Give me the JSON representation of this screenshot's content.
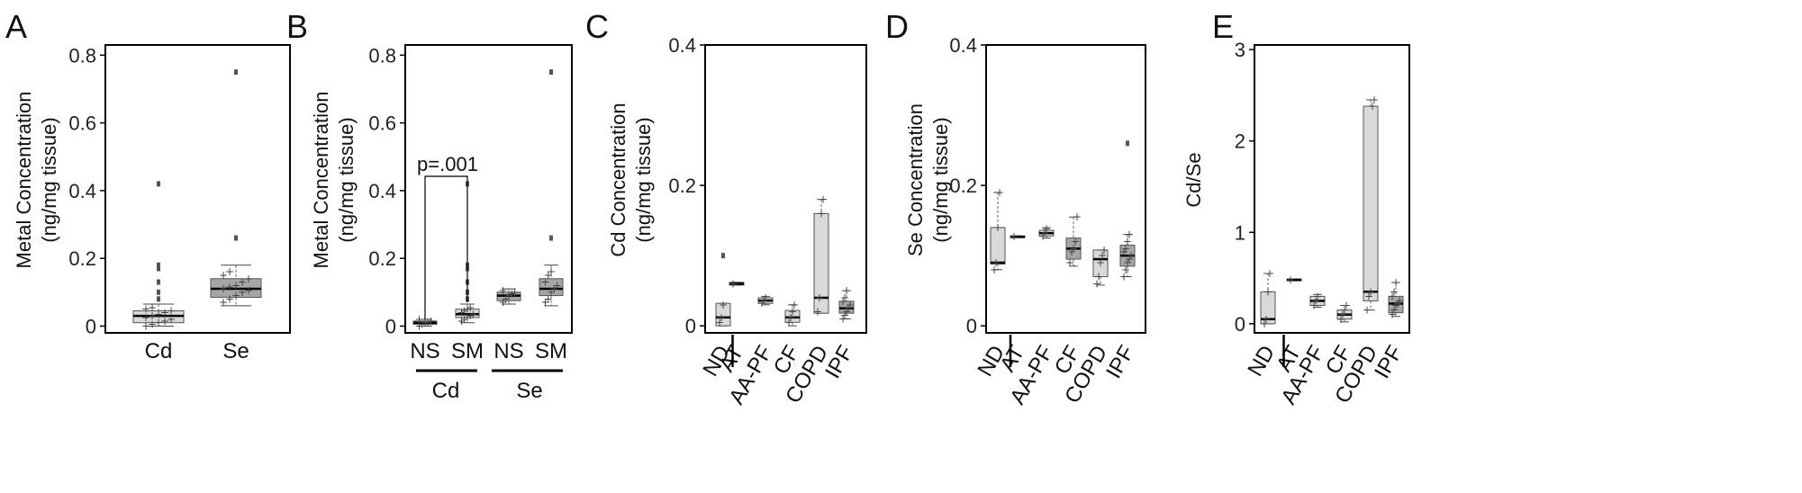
{
  "chart_data": [
    {
      "panel": "A",
      "type": "box",
      "ylabel": [
        "Metal Concentration",
        "(ng/mg tissue)"
      ],
      "ylim": [
        -0.02,
        0.83
      ],
      "yticks": [
        0,
        0.2,
        0.4,
        0.6,
        0.8
      ],
      "ytick_labels": [
        "0",
        "0.2",
        "0.4",
        "0.6",
        "0.8"
      ],
      "categories": [
        "Cd",
        "Se"
      ],
      "boxes": [
        {
          "label": "Cd",
          "q1": 0.01,
          "median": 0.03,
          "q3": 0.045,
          "whisker_low": 0.0,
          "whisker_high": 0.065,
          "fill": "#d9d9d9",
          "outliers": [
            0.42,
            0.18,
            0.17,
            0.13,
            0.1,
            0.08
          ],
          "points": [
            0.0,
            0.005,
            0.01,
            0.015,
            0.02,
            0.025,
            0.03,
            0.035,
            0.04,
            0.045,
            0.05,
            0.055
          ]
        },
        {
          "label": "Se",
          "q1": 0.085,
          "median": 0.11,
          "q3": 0.14,
          "whisker_low": 0.06,
          "whisker_high": 0.18,
          "fill": "#a6a6a6",
          "outliers": [
            0.75,
            0.26
          ],
          "points": [
            0.07,
            0.08,
            0.09,
            0.1,
            0.105,
            0.11,
            0.115,
            0.12,
            0.13,
            0.14,
            0.15,
            0.16
          ]
        }
      ]
    },
    {
      "panel": "B",
      "type": "box",
      "ylabel": [
        "Metal Concentration",
        "(ng/mg tissue)"
      ],
      "ylim": [
        -0.02,
        0.83
      ],
      "yticks": [
        0,
        0.2,
        0.4,
        0.6,
        0.8
      ],
      "ytick_labels": [
        "0",
        "0.2",
        "0.4",
        "0.6",
        "0.8"
      ],
      "categories": [
        "NS",
        "SM",
        "NS",
        "SM"
      ],
      "groups": [
        "Cd",
        "Se"
      ],
      "annotation": "p=.001",
      "boxes": [
        {
          "label": "NS",
          "q1": 0.005,
          "median": 0.01,
          "q3": 0.015,
          "whisker_low": 0.0,
          "whisker_high": 0.02,
          "fill": "#d9d9d9",
          "outliers": [],
          "points": [
            0.0,
            0.005,
            0.01,
            0.012,
            0.015,
            0.02
          ]
        },
        {
          "label": "SM",
          "q1": 0.025,
          "median": 0.035,
          "q3": 0.05,
          "whisker_low": 0.01,
          "whisker_high": 0.065,
          "fill": "#d9d9d9",
          "outliers": [
            0.42,
            0.18,
            0.17,
            0.13,
            0.1,
            0.08
          ],
          "points": [
            0.015,
            0.02,
            0.025,
            0.03,
            0.035,
            0.04,
            0.045,
            0.05,
            0.055
          ]
        },
        {
          "label": "NS",
          "q1": 0.075,
          "median": 0.09,
          "q3": 0.1,
          "whisker_low": 0.065,
          "whisker_high": 0.11,
          "fill": "#a6a6a6",
          "outliers": [],
          "points": [
            0.07,
            0.08,
            0.09,
            0.095,
            0.1,
            0.105
          ]
        },
        {
          "label": "SM",
          "q1": 0.09,
          "median": 0.11,
          "q3": 0.14,
          "whisker_low": 0.06,
          "whisker_high": 0.18,
          "fill": "#a6a6a6",
          "outliers": [
            0.75,
            0.26
          ],
          "points": [
            0.07,
            0.08,
            0.1,
            0.11,
            0.12,
            0.13,
            0.15,
            0.16
          ]
        }
      ]
    },
    {
      "panel": "C",
      "type": "box",
      "ylabel": [
        "Cd Concentration",
        "(ng/mg tissue)"
      ],
      "ylim": [
        -0.01,
        0.4
      ],
      "yticks": [
        0,
        0.2,
        0.4
      ],
      "ytick_labels": [
        "0",
        "0.2",
        "0.4"
      ],
      "categories": [
        "ND",
        "AT",
        "AA-PF",
        "CF",
        "COPD",
        "IPF"
      ],
      "boxes": [
        {
          "label": "ND",
          "q1": 0.0,
          "median": 0.012,
          "q3": 0.032,
          "whisker_low": 0.0,
          "whisker_high": 0.032,
          "fill": "#d9d9d9",
          "outliers": [
            0.1
          ],
          "points": [
            0.005,
            0.012,
            0.03
          ]
        },
        {
          "label": "AT",
          "q1": 0.058,
          "median": 0.06,
          "q3": 0.062,
          "whisker_low": 0.058,
          "whisker_high": 0.062,
          "fill": "#d9d9d9",
          "outliers": [],
          "points": [
            0.06
          ]
        },
        {
          "label": "AA-PF",
          "q1": 0.032,
          "median": 0.036,
          "q3": 0.04,
          "whisker_low": 0.03,
          "whisker_high": 0.042,
          "fill": "#d9d9d9",
          "outliers": [],
          "points": [
            0.032,
            0.036,
            0.04
          ]
        },
        {
          "label": "CF",
          "q1": 0.005,
          "median": 0.012,
          "q3": 0.022,
          "whisker_low": 0.0,
          "whisker_high": 0.03,
          "fill": "#d9d9d9",
          "outliers": [],
          "points": [
            0.005,
            0.012,
            0.02,
            0.03
          ]
        },
        {
          "label": "COPD",
          "q1": 0.018,
          "median": 0.04,
          "q3": 0.16,
          "whisker_low": 0.018,
          "whisker_high": 0.18,
          "fill": "#d9d9d9",
          "outliers": [],
          "points": [
            0.02,
            0.04,
            0.16,
            0.18
          ]
        },
        {
          "label": "IPF",
          "q1": 0.018,
          "median": 0.025,
          "q3": 0.035,
          "whisker_low": 0.01,
          "whisker_high": 0.05,
          "fill": "#a6a6a6",
          "outliers": [],
          "points": [
            0.01,
            0.015,
            0.02,
            0.025,
            0.03,
            0.035,
            0.04,
            0.05
          ]
        }
      ]
    },
    {
      "panel": "D",
      "type": "box",
      "ylabel": [
        "Se Concentration",
        "(ng/mg tissue)"
      ],
      "ylim": [
        -0.01,
        0.4
      ],
      "yticks": [
        0,
        0.2,
        0.4
      ],
      "ytick_labels": [
        "0",
        "0.2",
        "0.4"
      ],
      "categories": [
        "ND",
        "AT",
        "AA-PF",
        "CF",
        "COPD",
        "IPF"
      ],
      "boxes": [
        {
          "label": "ND",
          "q1": 0.088,
          "median": 0.09,
          "q3": 0.14,
          "whisker_low": 0.08,
          "whisker_high": 0.19,
          "fill": "#d9d9d9",
          "outliers": [],
          "points": [
            0.08,
            0.09,
            0.14,
            0.19
          ]
        },
        {
          "label": "AT",
          "q1": 0.126,
          "median": 0.127,
          "q3": 0.128,
          "whisker_low": 0.126,
          "whisker_high": 0.128,
          "fill": "#d9d9d9",
          "outliers": [],
          "points": [
            0.127
          ]
        },
        {
          "label": "AA-PF",
          "q1": 0.128,
          "median": 0.132,
          "q3": 0.136,
          "whisker_low": 0.125,
          "whisker_high": 0.14,
          "fill": "#d9d9d9",
          "outliers": [],
          "points": [
            0.128,
            0.132,
            0.138
          ]
        },
        {
          "label": "CF",
          "q1": 0.095,
          "median": 0.11,
          "q3": 0.125,
          "whisker_low": 0.085,
          "whisker_high": 0.155,
          "fill": "#a6a6a6",
          "outliers": [],
          "points": [
            0.09,
            0.105,
            0.11,
            0.12,
            0.155
          ]
        },
        {
          "label": "COPD",
          "q1": 0.07,
          "median": 0.095,
          "q3": 0.108,
          "whisker_low": 0.058,
          "whisker_high": 0.108,
          "fill": "#d9d9d9",
          "outliers": [],
          "points": [
            0.06,
            0.07,
            0.09,
            0.1,
            0.108
          ]
        },
        {
          "label": "IPF",
          "q1": 0.085,
          "median": 0.1,
          "q3": 0.115,
          "whisker_low": 0.07,
          "whisker_high": 0.13,
          "fill": "#a6a6a6",
          "outliers": [
            0.26
          ],
          "points": [
            0.07,
            0.08,
            0.09,
            0.095,
            0.1,
            0.105,
            0.11,
            0.12,
            0.13
          ]
        }
      ]
    },
    {
      "panel": "E",
      "type": "box",
      "ylabel": [
        "Cd/Se"
      ],
      "ylim": [
        -0.1,
        3.05
      ],
      "yticks": [
        0,
        1,
        2,
        3
      ],
      "ytick_labels": [
        "0",
        "1",
        "2",
        "3"
      ],
      "categories": [
        "ND",
        "AT",
        "AA-PF",
        "CF",
        "COPD",
        "IPF"
      ],
      "boxes": [
        {
          "label": "ND",
          "q1": 0.0,
          "median": 0.05,
          "q3": 0.35,
          "whisker_low": 0.0,
          "whisker_high": 0.55,
          "fill": "#d9d9d9",
          "outliers": [],
          "points": [
            0.0,
            0.05,
            0.35,
            0.55
          ]
        },
        {
          "label": "AT",
          "q1": 0.47,
          "median": 0.48,
          "q3": 0.49,
          "whisker_low": 0.47,
          "whisker_high": 0.49,
          "fill": "#d9d9d9",
          "outliers": [],
          "points": [
            0.48
          ]
        },
        {
          "label": "AA-PF",
          "q1": 0.2,
          "median": 0.25,
          "q3": 0.3,
          "whisker_low": 0.18,
          "whisker_high": 0.32,
          "fill": "#d9d9d9",
          "outliers": [],
          "points": [
            0.2,
            0.25,
            0.3
          ]
        },
        {
          "label": "CF",
          "q1": 0.05,
          "median": 0.1,
          "q3": 0.15,
          "whisker_low": 0.02,
          "whisker_high": 0.2,
          "fill": "#d9d9d9",
          "outliers": [],
          "points": [
            0.05,
            0.1,
            0.15,
            0.2
          ]
        },
        {
          "label": "COPD",
          "q1": 0.25,
          "median": 0.35,
          "q3": 2.38,
          "whisker_low": 0.15,
          "whisker_high": 2.45,
          "fill": "#d9d9d9",
          "outliers": [],
          "points": [
            0.15,
            0.3,
            0.35,
            2.38,
            2.45
          ]
        },
        {
          "label": "IPF",
          "q1": 0.12,
          "median": 0.22,
          "q3": 0.3,
          "whisker_low": 0.08,
          "whisker_high": 0.45,
          "fill": "#a6a6a6",
          "outliers": [],
          "points": [
            0.1,
            0.15,
            0.2,
            0.22,
            0.25,
            0.3,
            0.35,
            0.45
          ]
        }
      ]
    }
  ]
}
